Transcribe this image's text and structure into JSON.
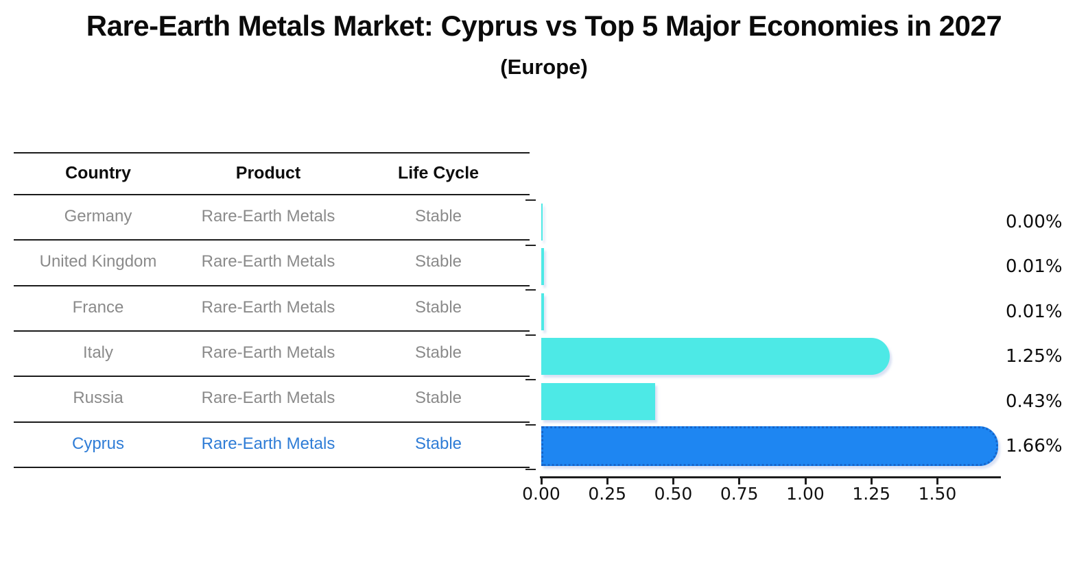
{
  "title": "Rare-Earth Metals Market: Cyprus vs Top 5 Major Economies in 2027",
  "subtitle": "(Europe)",
  "table": {
    "headers": [
      "Country",
      "Product",
      "Life Cycle"
    ],
    "rows": [
      {
        "country": "Germany",
        "product": "Rare-Earth Metals",
        "life_cycle": "Stable",
        "highlighted": false
      },
      {
        "country": "United Kingdom",
        "product": "Rare-Earth Metals",
        "life_cycle": "Stable",
        "highlighted": false
      },
      {
        "country": "France",
        "product": "Rare-Earth Metals",
        "life_cycle": "Stable",
        "highlighted": false
      },
      {
        "country": "Italy",
        "product": "Rare-Earth Metals",
        "life_cycle": "Stable",
        "highlighted": false
      },
      {
        "country": "Russia",
        "product": "Rare-Earth Metals",
        "life_cycle": "Stable",
        "highlighted": false
      },
      {
        "country": "Cyprus",
        "product": "Rare-Earth Metals",
        "life_cycle": "Stable",
        "highlighted": true
      }
    ]
  },
  "chart_data": {
    "type": "bar",
    "orientation": "horizontal",
    "title": "Rare-Earth Metals Market: Cyprus vs Top 5 Major Economies in 2027 (Europe)",
    "categories": [
      "Germany",
      "United Kingdom",
      "France",
      "Italy",
      "Russia",
      "Cyprus"
    ],
    "values": [
      0.0,
      0.01,
      0.01,
      1.25,
      0.43,
      1.66
    ],
    "value_labels": [
      "0.00%",
      "0.01%",
      "0.01%",
      "1.25%",
      "0.43%",
      "1.66%"
    ],
    "xlim": [
      0,
      1.74
    ],
    "x_ticks": [
      0.0,
      0.25,
      0.5,
      0.75,
      1.0,
      1.25,
      1.5
    ],
    "x_tick_labels": [
      "0.00",
      "0.25",
      "0.50",
      "0.75",
      "1.00",
      "1.25",
      "1.50"
    ],
    "grid": "off",
    "legend": "none",
    "highlight_index": 5,
    "rounded_ends": [
      false,
      false,
      false,
      true,
      false,
      true
    ],
    "colors": {
      "bar_default": "#4DE9E6",
      "bar_highlight": "#1E86F2",
      "bar_highlight_border": "#1565CB",
      "highlight_text": "#2E7CD6",
      "table_text": "#8A8A8A",
      "header_text": "#0D0D0D",
      "axis": "#1C1C1C"
    }
  }
}
